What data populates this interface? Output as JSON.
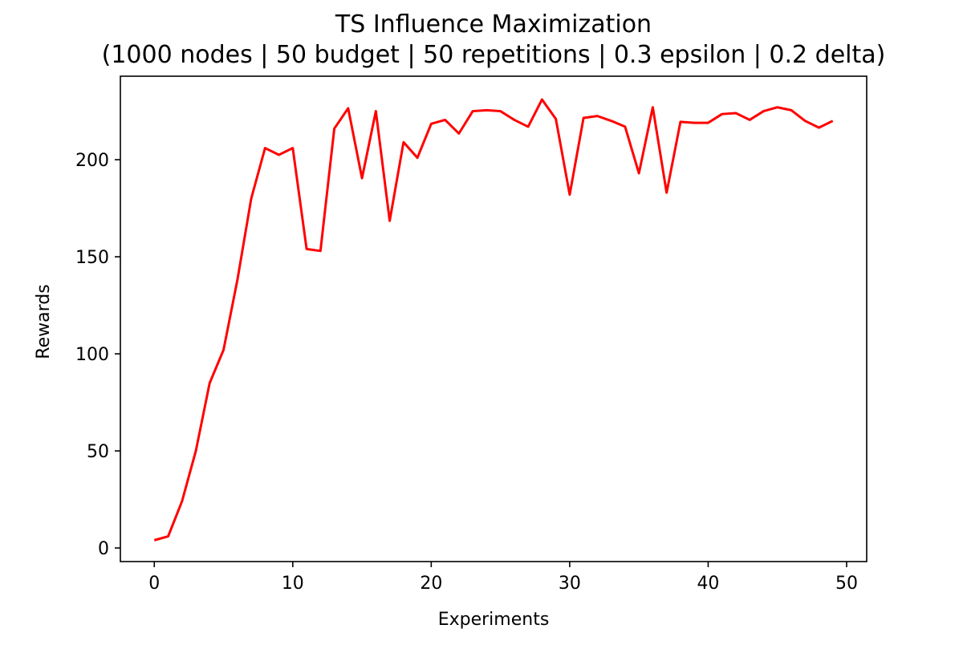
{
  "chart_data": {
    "type": "line",
    "title": "TS Influence Maximization",
    "subtitle": "(1000 nodes | 50 budget | 50 repetitions | 0.3 epsilon | 0.2 delta)",
    "xlabel": "Experiments",
    "ylabel": "Rewards",
    "xlim": [
      -2.45,
      51.45
    ],
    "ylim": [
      -7,
      243
    ],
    "xticks": [
      0,
      10,
      20,
      30,
      40,
      50
    ],
    "yticks": [
      0,
      50,
      100,
      150,
      200
    ],
    "grid": false,
    "legend": "none",
    "series": [
      {
        "color": "#ff0000",
        "x": [
          0,
          1,
          2,
          3,
          4,
          5,
          6,
          7,
          8,
          9,
          10,
          11,
          12,
          13,
          14,
          15,
          16,
          17,
          18,
          19,
          20,
          21,
          22,
          23,
          24,
          25,
          26,
          27,
          28,
          29,
          30,
          31,
          32,
          33,
          34,
          35,
          36,
          37,
          38,
          39,
          40,
          41,
          42,
          43,
          44,
          45,
          46,
          47,
          48,
          49
        ],
        "y": [
          4,
          6,
          24,
          50,
          85,
          102,
          138,
          180,
          206,
          202.5,
          206,
          154,
          153,
          216,
          226.5,
          190.5,
          225,
          168.5,
          209,
          201,
          218.5,
          220.5,
          213.5,
          225,
          225.5,
          225,
          220.5,
          217,
          231,
          221,
          182,
          221.5,
          222.5,
          220,
          217,
          193,
          227,
          183,
          219.5,
          219,
          219,
          223.5,
          224,
          220.5,
          225,
          227,
          225.5,
          220,
          216.5,
          220
        ]
      }
    ]
  }
}
